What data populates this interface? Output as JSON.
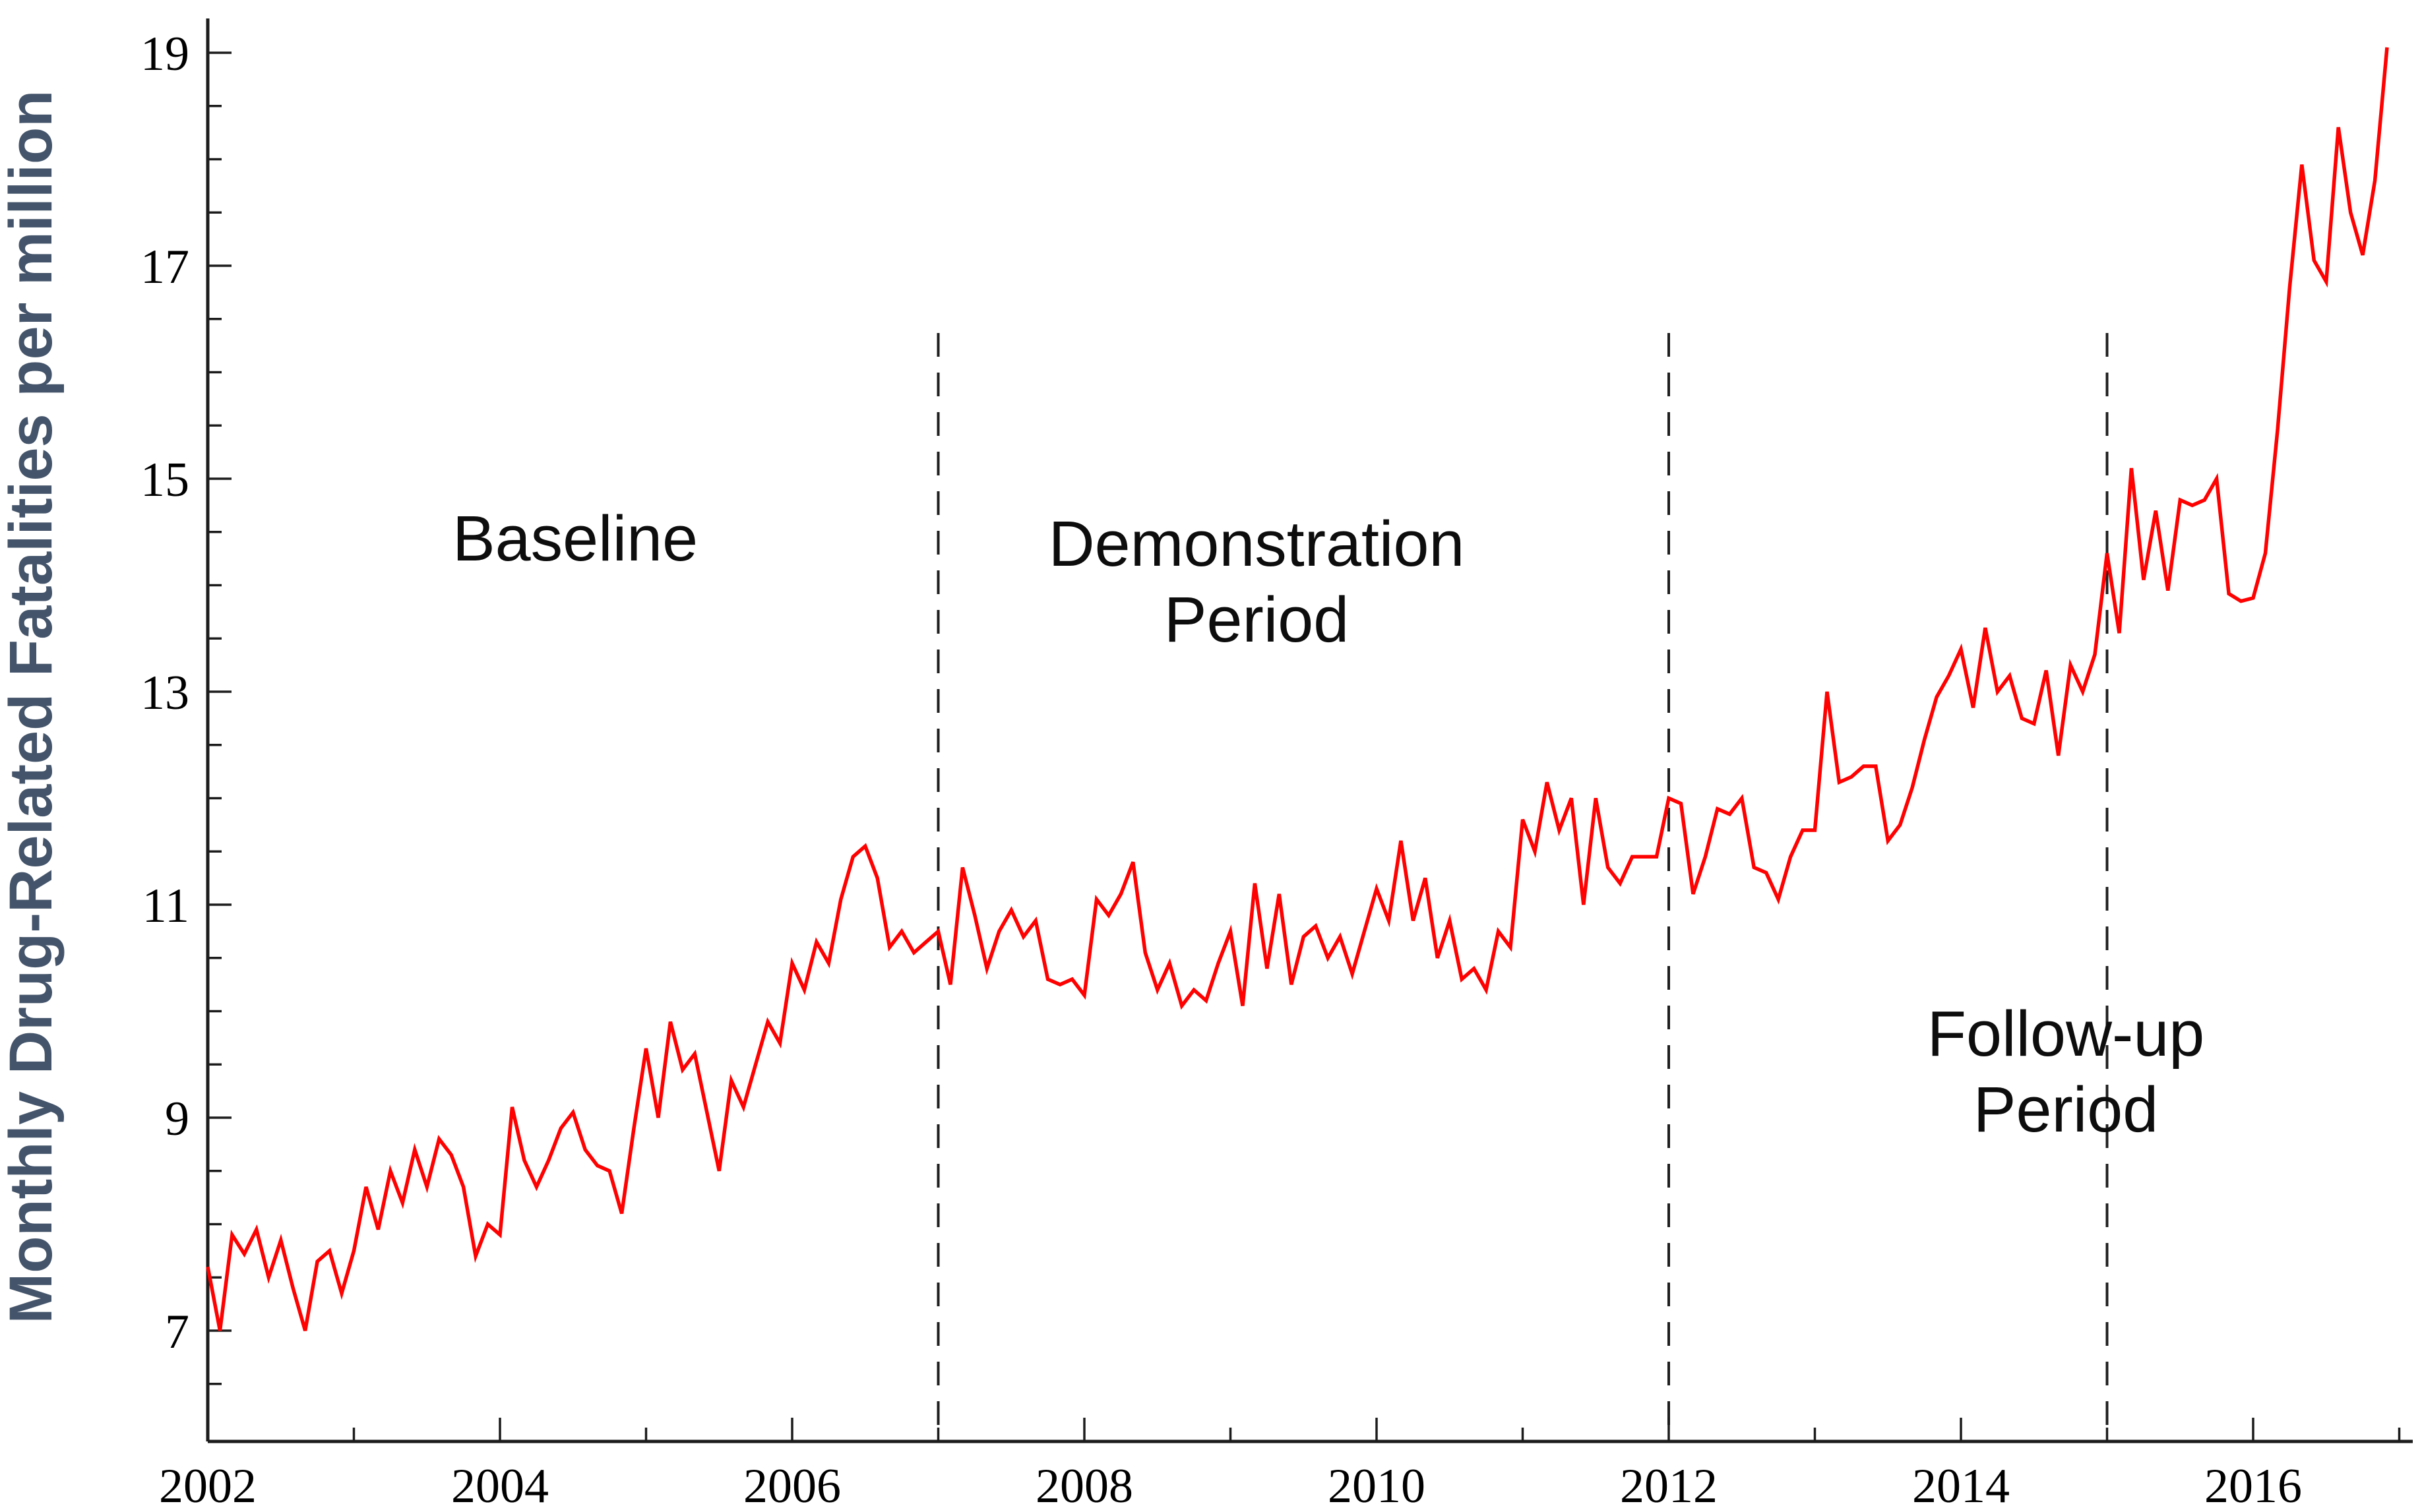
{
  "chart_data": {
    "type": "line",
    "title": "",
    "ylabel": "Monthly Drug-Related Fatalities per million",
    "xlabel": "",
    "line_color": "#fe0101",
    "y_title_color": "#44546a",
    "x_start_year": 2002,
    "frequency": "monthly",
    "x_tick_labels": [
      "2002",
      "2004",
      "2006",
      "2008",
      "2010",
      "2012",
      "2014",
      "2016"
    ],
    "x_major_tick_years": [
      2002,
      2004,
      2006,
      2008,
      2010,
      2012,
      2014,
      2016
    ],
    "x_minor_tick_years": [
      2003,
      2005,
      2007,
      2009,
      2011,
      2013,
      2015,
      2017
    ],
    "y_major_ticks": [
      7,
      9,
      11,
      13,
      15,
      17,
      19
    ],
    "y_tick_labels": [
      "7",
      "9",
      "11",
      "13",
      "15",
      "17",
      "19"
    ],
    "y_minor_step": 0.5,
    "ylim": [
      6.0,
      19.45
    ],
    "xlim_years": [
      2002,
      2017.1
    ],
    "grid": "off",
    "legend": "none",
    "boundary_years": [
      2007,
      2012,
      2015
    ],
    "annotations": [
      {
        "lines": [
          "Baseline"
        ]
      },
      {
        "lines": [
          "Demonstration",
          "Period"
        ]
      },
      {
        "lines": [
          "Follow-up",
          "Period"
        ]
      }
    ],
    "values": [
      7.6,
      7.0,
      7.9,
      7.72,
      7.95,
      7.5,
      7.85,
      7.4,
      7.0,
      7.65,
      7.75,
      7.35,
      7.75,
      8.35,
      7.95,
      8.5,
      8.2,
      8.7,
      8.35,
      8.8,
      8.65,
      8.35,
      7.7,
      8.0,
      7.9,
      9.1,
      8.6,
      8.35,
      8.6,
      8.9,
      9.05,
      8.7,
      8.55,
      8.5,
      8.1,
      8.9,
      9.65,
      9.0,
      9.9,
      9.45,
      9.6,
      9.05,
      8.5,
      9.35,
      9.1,
      9.5,
      9.9,
      9.7,
      10.45,
      10.2,
      10.65,
      10.45,
      11.05,
      11.45,
      11.55,
      11.25,
      10.6,
      10.75,
      10.55,
      10.65,
      10.75,
      10.25,
      11.35,
      10.9,
      10.4,
      10.75,
      10.95,
      10.7,
      10.85,
      10.3,
      10.25,
      10.3,
      10.15,
      11.05,
      10.9,
      11.1,
      11.4,
      10.55,
      10.2,
      10.45,
      10.05,
      10.2,
      10.1,
      10.45,
      10.75,
      10.05,
      11.2,
      10.4,
      11.1,
      10.25,
      10.7,
      10.8,
      10.5,
      10.7,
      10.35,
      10.75,
      11.15,
      10.85,
      11.6,
      10.85,
      11.25,
      10.5,
      10.85,
      10.3,
      10.4,
      10.2,
      10.75,
      10.6,
      11.8,
      11.5,
      12.15,
      11.7,
      12.0,
      11.0,
      12.0,
      11.35,
      11.2,
      11.45,
      11.45,
      11.45,
      12.0,
      11.95,
      11.1,
      11.45,
      11.9,
      11.85,
      12.0,
      11.35,
      11.3,
      11.05,
      11.45,
      11.7,
      11.7,
      13.0,
      12.15,
      12.2,
      12.3,
      12.3,
      11.6,
      11.75,
      12.1,
      12.55,
      12.95,
      13.15,
      13.4,
      12.85,
      13.6,
      13.0,
      13.15,
      12.75,
      12.7,
      13.2,
      12.4,
      13.25,
      13.0,
      13.35,
      14.3,
      13.55,
      15.1,
      14.05,
      14.7,
      13.95,
      14.8,
      14.75,
      14.8,
      15.0,
      13.92,
      13.85,
      13.88,
      14.3,
      15.45,
      16.8,
      17.95,
      17.05,
      16.85,
      18.3,
      17.5,
      17.1,
      17.8,
      19.05
    ]
  }
}
